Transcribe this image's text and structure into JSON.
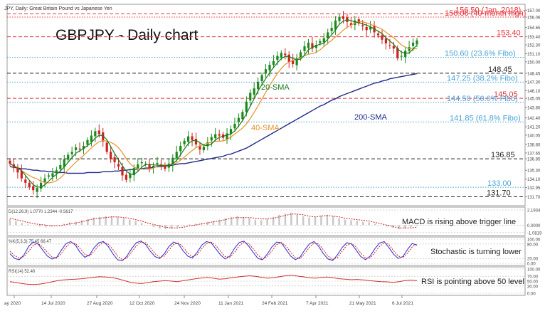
{
  "chart_data": {
    "type": "candlestick",
    "header": "JPY, Daily:  Great Britain Pound vs Japanese Yen",
    "title": "GBPJPY - Daily chart",
    "x_ticks": [
      "ay 2020",
      "14 Jul 2020",
      "27 Aug 2020",
      "12 Oct 2020",
      "24 Nov 2020",
      "11 Jan 2021",
      "24 Feb 2021",
      "7 Apr 2021",
      "21 May 2021",
      "6 Jul 2021"
    ],
    "y_axis": {
      "range": [
        130.5,
        157.8
      ],
      "ticks": [
        "157.00",
        "156.06",
        "154.65",
        "153.40",
        "152.30",
        "151.10",
        "150.00",
        "148.45",
        "147.30",
        "146.10",
        "145.05",
        "143.80",
        "142.40",
        "141.20",
        "140.05",
        "138.80",
        "137.65",
        "136.85",
        "135.30",
        "134.10",
        "132.95",
        "131.70"
      ]
    },
    "levels": [
      {
        "value": 156.5,
        "label": "156.50 (Jan. 2018)",
        "color": "#e8333a",
        "style": "dash"
      },
      {
        "value": 156.06,
        "label": "156.06 (40-month high)",
        "color": "#e8333a",
        "style": "dotted"
      },
      {
        "value": 153.4,
        "label": "153.40",
        "color": "#e8333a",
        "style": "dash"
      },
      {
        "value": 150.6,
        "label": "150.60 (23.6% Fibo)",
        "color": "#4aa3d8",
        "style": "dotted"
      },
      {
        "value": 148.45,
        "label": "148.45",
        "color": "#222222",
        "style": "dash"
      },
      {
        "value": 147.25,
        "label": "147.25 (38.2% Fibo)",
        "color": "#4aa3d8",
        "style": "dotted"
      },
      {
        "value": 145.05,
        "label": "145.05",
        "color": "#e8333a",
        "style": "dash"
      },
      {
        "value": 144.5,
        "label": "144.50 (50.0% Fibo)",
        "color": "#4aa3d8",
        "style": "dotted"
      },
      {
        "value": 141.85,
        "label": "141.85 (61.8% Fibo)",
        "color": "#4aa3d8",
        "style": "dotted"
      },
      {
        "value": 136.85,
        "label": "136.85",
        "color": "#222222",
        "style": "dash"
      },
      {
        "value": 133.0,
        "label": "133.00",
        "color": "#4aa3d8",
        "style": "dotted"
      },
      {
        "value": 131.7,
        "label": "131.70",
        "color": "#222222",
        "style": "dash"
      }
    ],
    "ma_labels": [
      {
        "text": "20-SMA",
        "color": "#1a7a1a"
      },
      {
        "text": "40-SMA",
        "color": "#e8922a"
      },
      {
        "text": "200-SMA",
        "color": "#1f2a8a"
      }
    ],
    "closes": [
      136.2,
      135.6,
      135.0,
      134.2,
      133.6,
      133.0,
      132.6,
      132.9,
      133.6,
      134.2,
      134.6,
      134.9,
      135.3,
      136.0,
      136.8,
      137.4,
      137.8,
      138.4,
      138.2,
      138.6,
      139.4,
      140.0,
      140.6,
      140.2,
      139.2,
      137.8,
      136.9,
      136.4,
      135.8,
      134.6,
      134.0,
      134.8,
      135.6,
      136.1,
      136.4,
      136.2,
      135.6,
      135.9,
      136.3,
      136.0,
      135.5,
      136.2,
      137.0,
      137.8,
      138.6,
      139.3,
      139.9,
      139.4,
      138.8,
      138.1,
      138.5,
      139.1,
      139.8,
      140.2,
      140.0,
      139.7,
      140.3,
      140.9,
      141.6,
      142.4,
      143.2,
      144.6,
      145.8,
      146.4,
      147.3,
      148.2,
      149.0,
      149.6,
      150.1,
      150.8,
      151.2,
      150.9,
      150.0,
      149.7,
      150.5,
      151.3,
      152.1,
      152.6,
      151.8,
      152.3,
      152.8,
      153.2,
      154.0,
      154.6,
      155.6,
      156.1,
      155.8,
      155.4,
      155.0,
      155.6,
      155.2,
      154.8,
      154.3,
      154.7,
      154.0,
      153.6,
      153.0,
      152.5,
      152.2,
      151.8,
      150.5,
      150.8,
      151.5,
      152.0,
      152.6,
      152.9
    ],
    "sma200": [
      135.8,
      135.7,
      135.6,
      135.5,
      135.5,
      135.4,
      135.3,
      135.3,
      135.2,
      135.2,
      135.1,
      135.1,
      135.0,
      135.0,
      135.0,
      134.9,
      134.9,
      134.9,
      134.9,
      134.9,
      135.0,
      135.0,
      135.0,
      135.0,
      135.1,
      135.1,
      135.1,
      135.2,
      135.2,
      135.3,
      135.3,
      135.4,
      135.4,
      135.5,
      135.5,
      135.6,
      135.6,
      135.7,
      135.8,
      135.8,
      135.9,
      135.9,
      136.0,
      136.1,
      136.2,
      136.2,
      136.3,
      136.4,
      136.5,
      136.6,
      136.7,
      136.8,
      136.9,
      137.0,
      137.1,
      137.2,
      137.4,
      137.5,
      137.7,
      137.9,
      138.1,
      138.3,
      138.6,
      138.9,
      139.2,
      139.5,
      139.8,
      140.1,
      140.4,
      140.7,
      141.0,
      141.3,
      141.6,
      141.9,
      142.2,
      142.5,
      142.8,
      143.1,
      143.4,
      143.7,
      144.0,
      144.2,
      144.5,
      144.8,
      145.0,
      145.3,
      145.5,
      145.7,
      145.9,
      146.1,
      146.3,
      146.5,
      146.7,
      146.9,
      147.1,
      147.2,
      147.4,
      147.5,
      147.7,
      147.8,
      147.9,
      148.0,
      148.1,
      148.2,
      148.3,
      148.4
    ],
    "indicators": [
      {
        "name": "MACD",
        "params": "D(12,26,9) 1.0770 1.2344 -0.5617",
        "axis": [
          "2.1934",
          "0.0000",
          "-1.0819"
        ],
        "range": [
          -1.2,
          2.3
        ],
        "label": "MACD is rising above trigger line",
        "main": [
          0.9,
          0.6,
          0.3,
          0.1,
          0.0,
          -0.2,
          -0.3,
          -0.2,
          0.0,
          0.2,
          0.4,
          0.5,
          0.7,
          0.9,
          1.1,
          1.2,
          1.3,
          1.3,
          1.2,
          1.0,
          0.8,
          0.6,
          0.3,
          0.0,
          -0.3,
          -0.5,
          -0.6,
          -0.5,
          -0.3,
          -0.1,
          0.1,
          0.2,
          0.3,
          0.5,
          0.6,
          0.8,
          1.0,
          1.2,
          1.3,
          1.2,
          1.0,
          0.8,
          0.7,
          0.9,
          1.2,
          1.5,
          1.7,
          1.8,
          1.6,
          1.3,
          1.1,
          1.2,
          1.4,
          1.5,
          1.3,
          1.0,
          0.8,
          0.7,
          0.6,
          0.5,
          0.4,
          0.2,
          0.0,
          -0.2,
          -0.4,
          -0.6,
          -0.5,
          -0.3,
          -0.1
        ],
        "signal": [
          1.0,
          0.8,
          0.6,
          0.4,
          0.2,
          0.1,
          0.0,
          -0.1,
          -0.1,
          0.0,
          0.2,
          0.3,
          0.5,
          0.7,
          0.9,
          1.0,
          1.1,
          1.2,
          1.2,
          1.1,
          1.0,
          0.8,
          0.6,
          0.3,
          0.1,
          -0.1,
          -0.3,
          -0.4,
          -0.4,
          -0.3,
          -0.1,
          0.0,
          0.2,
          0.3,
          0.5,
          0.6,
          0.8,
          1.0,
          1.1,
          1.1,
          1.1,
          1.0,
          0.9,
          0.9,
          1.0,
          1.2,
          1.4,
          1.6,
          1.6,
          1.5,
          1.3,
          1.2,
          1.3,
          1.4,
          1.3,
          1.2,
          1.0,
          0.9,
          0.8,
          0.7,
          0.6,
          0.4,
          0.2,
          0.0,
          -0.2,
          -0.4,
          -0.4,
          -0.4,
          -0.3
        ]
      },
      {
        "name": "Stochastic",
        "params": "%K(5,3,3) 75.45 66.47",
        "axis": [
          "100.00",
          "80.00",
          "20.00",
          "0.00"
        ],
        "range": [
          0,
          100
        ],
        "label": "Stochastic is turning lower",
        "main": [
          40,
          20,
          15,
          35,
          70,
          88,
          80,
          55,
          30,
          18,
          25,
          55,
          82,
          90,
          75,
          45,
          25,
          35,
          65,
          85,
          90,
          70,
          40,
          15,
          10,
          30,
          60,
          85,
          92,
          78,
          50,
          28,
          20,
          40,
          70,
          88,
          80,
          52,
          30,
          22,
          45,
          75,
          90,
          85,
          60,
          35,
          18,
          30,
          62,
          86,
          92,
          72,
          45,
          20,
          15,
          38,
          68,
          88,
          85,
          58,
          30,
          15,
          25,
          55,
          80,
          90,
          70,
          40,
          18,
          12,
          35,
          65,
          85,
          80,
          55,
          28,
          15,
          30,
          60,
          84,
          90,
          65,
          38,
          20,
          28,
          58,
          82,
          75
        ],
        "signal": [
          50,
          32,
          22,
          28,
          50,
          75,
          82,
          68,
          45,
          26,
          22,
          40,
          68,
          85,
          82,
          62,
          38,
          30,
          50,
          74,
          86,
          80,
          58,
          30,
          15,
          22,
          46,
          72,
          88,
          85,
          66,
          40,
          25,
          30,
          55,
          78,
          84,
          68,
          42,
          28,
          35,
          60,
          82,
          88,
          74,
          50,
          28,
          25,
          45,
          72,
          88,
          82,
          60,
          34,
          18,
          28,
          52,
          77,
          86,
          72,
          46,
          24,
          20,
          40,
          66,
          84,
          80,
          56,
          30,
          16,
          24,
          50,
          74,
          82,
          68,
          42,
          22,
          22,
          45,
          70,
          86,
          78,
          52,
          30,
          24,
          42,
          68,
          80
        ]
      },
      {
        "name": "RSI",
        "params": "RSI(14) 52.40",
        "axis": [
          "100.00",
          "70.00",
          "50.00",
          "30.00",
          "0.00"
        ],
        "range": [
          0,
          100
        ],
        "label": "RSI is pointing above 50 level",
        "main": [
          48,
          44,
          40,
          37,
          36,
          38,
          42,
          47,
          52,
          55,
          57,
          58,
          60,
          63,
          66,
          68,
          67,
          65,
          60,
          53,
          46,
          42,
          40,
          44,
          48,
          50,
          52,
          50,
          48,
          52,
          56,
          60,
          63,
          65,
          62,
          58,
          60,
          64,
          67,
          70,
          72,
          70,
          66,
          62,
          64,
          68,
          72,
          74,
          71,
          68,
          64,
          62,
          65,
          67,
          64,
          60,
          58,
          56,
          57,
          55,
          52,
          50,
          48,
          47,
          45,
          48,
          52,
          54,
          52
        ]
      }
    ]
  }
}
